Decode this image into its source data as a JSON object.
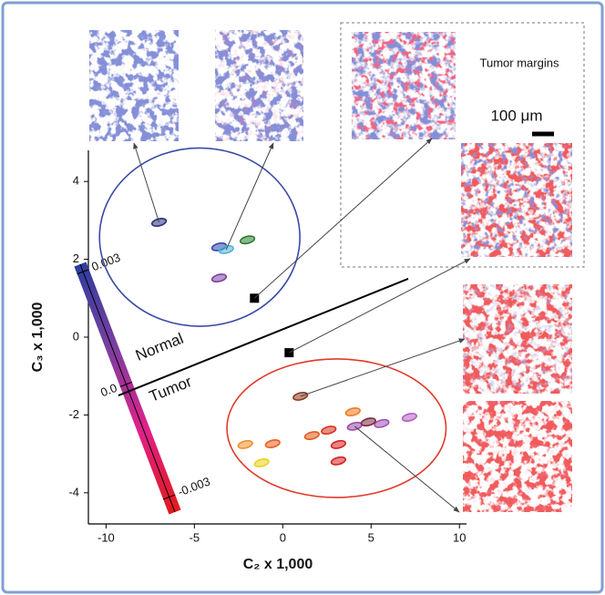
{
  "chart_data": {
    "type": "scatter",
    "xlabel": "C₂ x 1,000",
    "ylabel": "C₃ x 1,000",
    "xlim": [
      -11,
      10.4
    ],
    "ylim": [
      -4.8,
      4.8
    ],
    "xticks": [
      -10,
      -5,
      0,
      5,
      10
    ],
    "yticks": [
      4,
      2,
      0,
      -2,
      -4
    ],
    "series": [
      {
        "name": "Normal",
        "color": "#3a4aa6",
        "x": [
          -7.0,
          -3.6,
          -3.2,
          -2.0,
          -3.6
        ],
        "y": [
          2.95,
          2.32,
          2.25,
          2.5,
          1.52
        ],
        "point_colors": [
          "#2b2f7a",
          "#3344aa",
          "#4fb3d9",
          "#2e7d32",
          "#7b3fa0"
        ],
        "group_ellipse": {
          "cx": -4.7,
          "cy": 2.57,
          "rx": 5.67,
          "ry": 2.29
        }
      },
      {
        "name": "Tumor",
        "color": "#e03a2a",
        "x": [
          1.0,
          -2.12,
          -0.57,
          1.65,
          3.97,
          2.6,
          3.15,
          3.15,
          -1.19,
          4.07,
          5.6,
          7.17,
          4.85
        ],
        "y": [
          -1.52,
          -2.76,
          -2.74,
          -2.53,
          -1.92,
          -2.39,
          -2.76,
          -3.18,
          -3.23,
          -2.29,
          -2.22,
          -2.06,
          -2.18
        ],
        "point_colors": [
          "#8b3a1a",
          "#f0902c",
          "#e8601c",
          "#e05a18",
          "#f07a20",
          "#d6301a",
          "#d62020",
          "#d62020",
          "#e8d21a",
          "#9a4aa8",
          "#a050b0",
          "#b060c0",
          "#7a2a40"
        ],
        "group_ellipse": {
          "cx": 3.04,
          "cy": -2.34,
          "rx": 6.2,
          "ry": 1.78
        }
      }
    ],
    "markers": {
      "x": [
        -1.6,
        0.36
      ],
      "y": [
        1.0,
        -0.4
      ],
      "color": "#000000"
    },
    "boundary": {
      "x": [
        -9.3,
        7.1
      ],
      "y": [
        -1.5,
        1.5
      ],
      "color": "#000000"
    },
    "colorbar": {
      "lim": [
        -0.0034,
        0.0032
      ],
      "ticks": [
        0.003,
        {
          "value": 0,
          "label": "0.0"
        },
        -0.003
      ],
      "colors": [
        "#2c3e9e",
        "#7a3fa0",
        "#e0208a",
        "#e21a1a"
      ]
    },
    "annotations": [
      "Tumor margins",
      "100 μm"
    ]
  }
}
